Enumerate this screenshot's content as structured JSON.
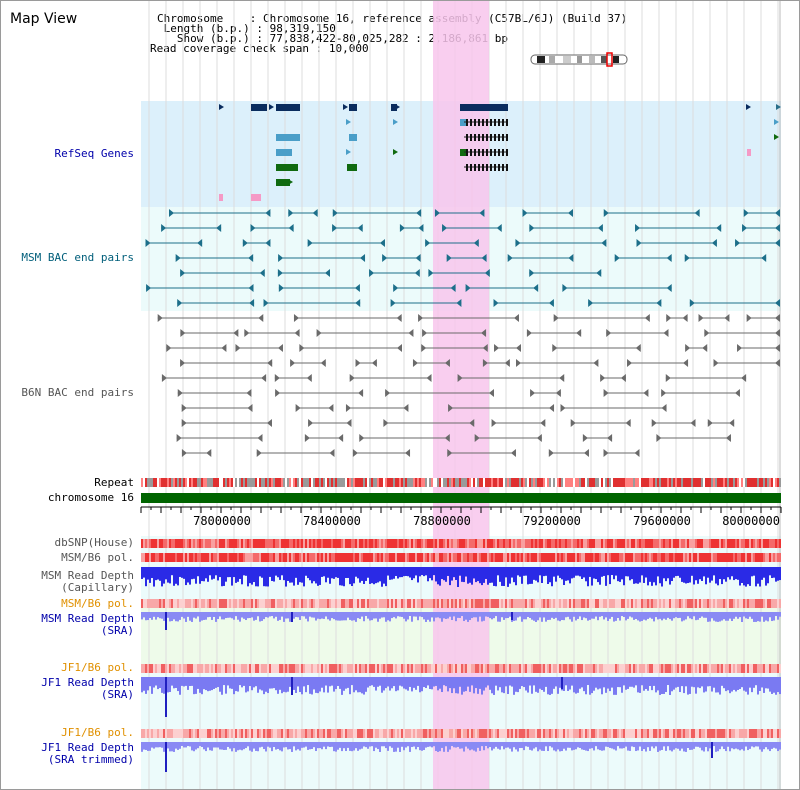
{
  "view": {
    "title": "Map View",
    "chromosome_label": "Chromosome",
    "chromosome_value": "Chromosome 16, reference assembly (C57BL/6J) (Build 37)",
    "length_label": "Length (b.p.)",
    "length_value": "98,319,150",
    "show_label": "Show (b.p.)",
    "show_value": "77,838,422-80,025,282 : 2,186,861 bp",
    "coverage_label": "Read coverage check span",
    "coverage_value": "10,000",
    "separator": ":"
  },
  "tracks": {
    "refseq": "RefSeq Genes",
    "msm_bac": "MSM BAC end pairs",
    "b6n_bac": "B6N BAC end pairs",
    "repeat": "Repeat",
    "chromosome": "chromosome 16",
    "dbsnp": "dbSNP(House)",
    "msm_b6_pol": "MSM/B6 pol.",
    "msm_depth_cap_1": "MSM Read Depth",
    "msm_depth_cap_2": "(Capillary)",
    "msm_b6_pol_2": "MSM/B6 pol.",
    "msm_depth_sra_1": "MSM Read Depth",
    "msm_depth_sra_2": "(SRA)",
    "jf1_b6_pol": "JF1/B6 pol.",
    "jf1_depth_sra_1": "JF1 Read Depth",
    "jf1_depth_sra_2": "(SRA)",
    "jf1_b6_pol_2": "JF1/B6 pol.",
    "jf1_depth_trim_1": "JF1 Read Depth",
    "jf1_depth_trim_2": "(SRA trimmed)"
  },
  "axis": {
    "ticks": [
      "78000000",
      "78400000",
      "78800000",
      "79200000",
      "79600000",
      "80000000"
    ]
  },
  "colors": {
    "refseq_bg": "#dcf0fb",
    "bac_bg": "#ecfbfb",
    "highlight": "#f8c6ec",
    "chromosome_bar": "#006400",
    "depth_bar": "#2020e0",
    "depth_light": "#8080f0",
    "pol_red": "#ee3333",
    "label_blue": "#0000aa",
    "label_orange": "#e09000",
    "label_teal": "#005e7a",
    "label_gray": "#555555"
  }
}
